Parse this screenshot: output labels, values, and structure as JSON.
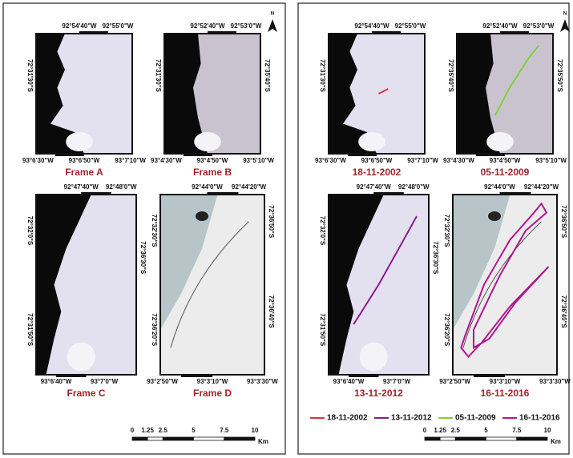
{
  "panels": [
    {
      "north": "N",
      "frames": [
        {
          "caption": "Frame A",
          "top": [
            "92°54'40\"W",
            "92°55'0\"W"
          ],
          "bottom": [
            "93°6'30\"W",
            "93°6'50\"W",
            "93°7'10\"W"
          ],
          "left": [
            "72°31'30\"S"
          ],
          "right": []
        },
        {
          "caption": "Frame B",
          "top": [
            "92°52'40\"W",
            "92°53'0\"W"
          ],
          "bottom": [
            "93°4'30\"W",
            "93°4'50\"W",
            "93°5'10\"W"
          ],
          "left": [
            "72°31'30\"S"
          ],
          "right": [
            "72°35'40\"S"
          ]
        },
        {
          "caption": "Frame C",
          "top": [
            "92°47'40\"W",
            "92°48'0\"W"
          ],
          "bottom": [
            "93°6'40\"W",
            "93°7'0\"W"
          ],
          "left": [
            "72°32'0\"S",
            "72°31'50\"S"
          ],
          "right": [
            "72°36'30\"S"
          ]
        },
        {
          "caption": "Frame D",
          "top": [
            "92°44'0\"W",
            "92°44'20\"W"
          ],
          "bottom": [
            "93°2'50\"W",
            "93°3'10\"W",
            "93°3'30\"W"
          ],
          "left": [
            "72°32'30\"S",
            "72°36'20\"S"
          ],
          "right": [
            "72°36'50\"S",
            "72°36'40\"S"
          ]
        }
      ],
      "scale": {
        "ticks": [
          0,
          1.25,
          2.5,
          5,
          7.5,
          10
        ],
        "unit": "Km"
      }
    },
    {
      "north": "N",
      "frames": [
        {
          "caption": "18-11-2002",
          "top": [
            "92°54'40\"W",
            "92°55'0\"W"
          ],
          "bottom": [
            "93°6'30\"W",
            "93°6'50\"W",
            "93°7'10\"W"
          ],
          "left": [
            "72°31'30\"S"
          ],
          "right": []
        },
        {
          "caption": "05-11-2009",
          "top": [
            "92°52'40\"W",
            "92°53'0\"W"
          ],
          "bottom": [
            "93°4'30\"W",
            "93°4'50\"W",
            "93°5'10\"W"
          ],
          "left": [
            "72°35'40\"S"
          ],
          "right": [
            "72°35'50\"S"
          ]
        },
        {
          "caption": "13-11-2012",
          "top": [
            "92°47'40\"W",
            "92°48'0\"W"
          ],
          "bottom": [
            "93°6'40\"W",
            "93°7'0\"W"
          ],
          "left": [
            "72°32'0\"S",
            "72°31'50\"S"
          ],
          "right": [
            "72°36'30\"S"
          ]
        },
        {
          "caption": "16-11-2016",
          "top": [
            "92°44'0\"W",
            "92°44'20\"W"
          ],
          "bottom": [
            "93°2'50\"W",
            "93°3'10\"W",
            "93°3'30\"W"
          ],
          "left": [
            "72°32'30\"S",
            "72°36'20\"S"
          ],
          "right": [
            "72°36'50\"S",
            "72°36'40\"S"
          ]
        }
      ],
      "scale": {
        "ticks": [
          0,
          1.25,
          2.5,
          5,
          7.5,
          10
        ],
        "unit": "Km"
      },
      "legend": [
        {
          "label": "18-11-2002",
          "color": "#e0313b"
        },
        {
          "label": "13-11-2012",
          "color": "#8b1a8e"
        },
        {
          "label": "05-11-2009",
          "color": "#7fd13b"
        },
        {
          "label": "16-11-2016",
          "color": "#b0158f"
        }
      ]
    }
  ]
}
